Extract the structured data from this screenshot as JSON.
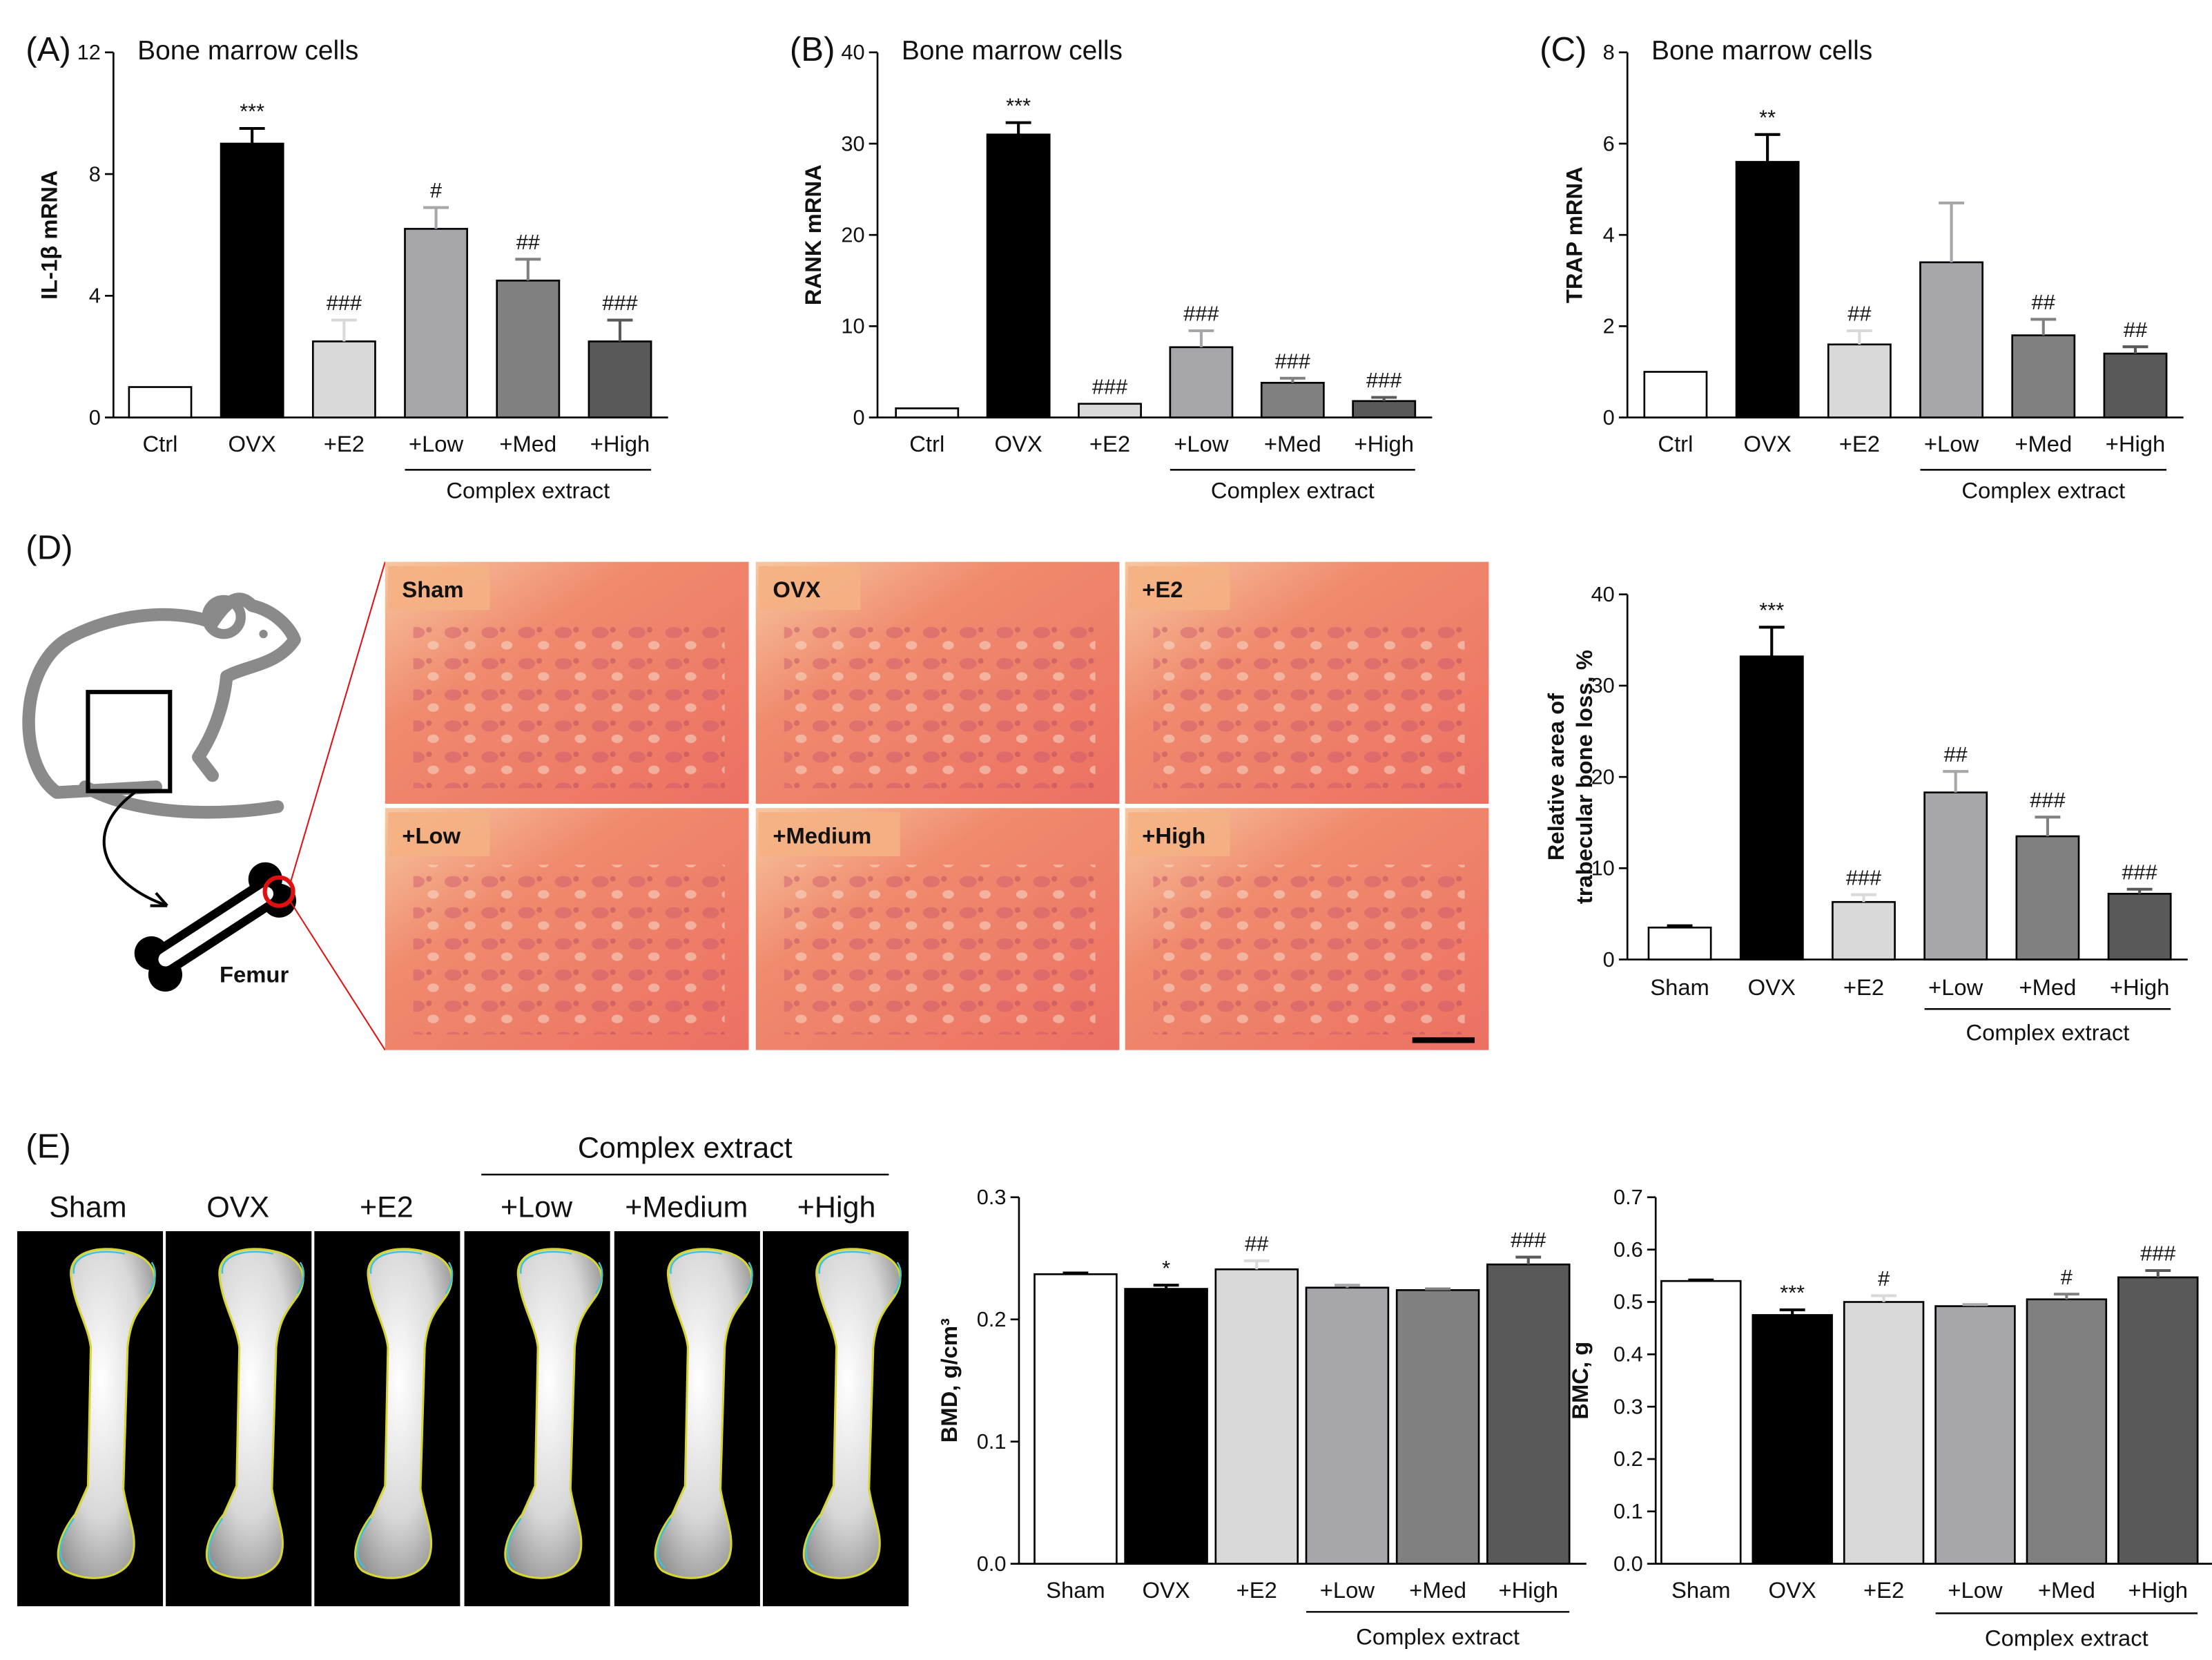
{
  "chart_data": [
    {
      "type": "bar",
      "panel": "(A)",
      "title": "Bone marrow cells",
      "ylabel": [
        "IL-1β mRNA"
      ],
      "categories": [
        "Ctrl",
        "OVX",
        "+E2",
        "+Low",
        "+Med",
        "+High"
      ],
      "values": [
        1.0,
        9.0,
        2.5,
        6.2,
        4.5,
        2.5
      ],
      "errors": [
        0,
        0.5,
        0.7,
        0.7,
        0.7,
        0.7
      ],
      "annotations": [
        null,
        "***",
        "###",
        "#",
        "##",
        "###"
      ],
      "colors": [
        "#ffffff",
        "#000000",
        "#d9d9d9",
        "#a6a6ab",
        "#808080",
        "#595959"
      ],
      "group_label": "Complex extract",
      "ylim": [
        0,
        12
      ],
      "yticks": [
        0,
        4,
        8,
        12
      ]
    },
    {
      "type": "bar",
      "panel": "(B)",
      "title": "Bone marrow cells",
      "ylabel": [
        "RANK mRNA"
      ],
      "categories": [
        "Ctrl",
        "OVX",
        "+E2",
        "+Low",
        "+Med",
        "+High"
      ],
      "values": [
        1.0,
        31.0,
        1.5,
        7.7,
        3.8,
        1.8
      ],
      "errors": [
        0,
        1.3,
        0,
        1.8,
        0.5,
        0.4
      ],
      "annotations": [
        null,
        "***",
        "###",
        "###",
        "###",
        "###"
      ],
      "colors": [
        "#ffffff",
        "#000000",
        "#d9d9d9",
        "#a6a6ab",
        "#808080",
        "#595959"
      ],
      "group_label": "Complex extract",
      "ylim": [
        0,
        40
      ],
      "yticks": [
        0,
        10,
        20,
        30,
        40
      ]
    },
    {
      "type": "bar",
      "panel": "(C)",
      "title": "Bone marrow cells",
      "ylabel": [
        "TRAP mRNA"
      ],
      "categories": [
        "Ctrl",
        "OVX",
        "+E2",
        "+Low",
        "+Med",
        "+High"
      ],
      "values": [
        1.0,
        5.6,
        1.6,
        3.4,
        1.8,
        1.4
      ],
      "errors": [
        0,
        0.6,
        0.3,
        1.3,
        0.35,
        0.15
      ],
      "annotations": [
        null,
        "**",
        "##",
        null,
        "##",
        "##"
      ],
      "colors": [
        "#ffffff",
        "#000000",
        "#d9d9d9",
        "#a6a6ab",
        "#808080",
        "#595959"
      ],
      "group_label": "Complex extract",
      "ylim": [
        0,
        8
      ],
      "yticks": [
        0,
        2,
        4,
        6,
        8
      ]
    },
    {
      "type": "bar",
      "ylabel": [
        "Relative area of",
        "trabecular bone loss, %"
      ],
      "categories": [
        "Sham",
        "OVX",
        "+E2",
        "+Low",
        "+Med",
        "+High"
      ],
      "values": [
        3.5,
        33.2,
        6.3,
        18.3,
        13.5,
        7.2
      ],
      "errors": [
        0.2,
        3.2,
        0.8,
        2.3,
        2.1,
        0.5
      ],
      "annotations": [
        null,
        "***",
        "###",
        "##",
        "###",
        "###"
      ],
      "colors": [
        "#ffffff",
        "#000000",
        "#d9d9d9",
        "#a6a6ab",
        "#808080",
        "#595959"
      ],
      "group_label": "Complex extract",
      "ylim": [
        0,
        40
      ],
      "yticks": [
        0,
        10,
        20,
        30,
        40
      ]
    },
    {
      "type": "bar",
      "ylabel": [
        "BMD, g/cm³"
      ],
      "categories": [
        "Sham",
        "OVX",
        "+E2",
        "+Low",
        "+Med",
        "+High"
      ],
      "values": [
        0.237,
        0.225,
        0.241,
        0.226,
        0.224,
        0.245
      ],
      "errors": [
        0.001,
        0.003,
        0.007,
        0.002,
        0.001,
        0.006
      ],
      "annotations": [
        null,
        "*",
        "##",
        null,
        null,
        "###"
      ],
      "colors": [
        "#ffffff",
        "#000000",
        "#d9d9d9",
        "#a6a6ab",
        "#808080",
        "#595959"
      ],
      "group_label": "Complex extract",
      "ylim": [
        0,
        0.3
      ],
      "yticks": [
        {
          "value": 0,
          "label": "0.0"
        },
        0.1,
        0.2,
        0.3
      ]
    },
    {
      "type": "bar",
      "ylabel": [
        "BMC, g"
      ],
      "categories": [
        "Sham",
        "OVX",
        "+E2",
        "+Low",
        "+Med",
        "+High"
      ],
      "values": [
        0.54,
        0.475,
        0.5,
        0.492,
        0.505,
        0.547
      ],
      "errors": [
        0.002,
        0.01,
        0.012,
        0.003,
        0.01,
        0.013
      ],
      "annotations": [
        null,
        "***",
        "#",
        null,
        "#",
        "###"
      ],
      "colors": [
        "#ffffff",
        "#000000",
        "#d9d9d9",
        "#a6a6ab",
        "#808080",
        "#595959"
      ],
      "group_label": "Complex extract",
      "ylim": [
        0,
        0.7
      ],
      "yticks": [
        {
          "value": 0,
          "label": "0.0"
        },
        0.1,
        0.2,
        0.3,
        0.4,
        0.5,
        0.6,
        0.7
      ]
    }
  ],
  "histology": {
    "panel": "(D)",
    "schematic_label": "Femur",
    "images": [
      "Sham",
      "OVX",
      "+E2",
      "+Low",
      "+Medium",
      "+High"
    ]
  },
  "dxa": {
    "panel": "(E)",
    "group_label": "Complex extract",
    "images": [
      "Sham",
      "OVX",
      "+E2",
      "+Low",
      "+Medium",
      "+High"
    ]
  }
}
